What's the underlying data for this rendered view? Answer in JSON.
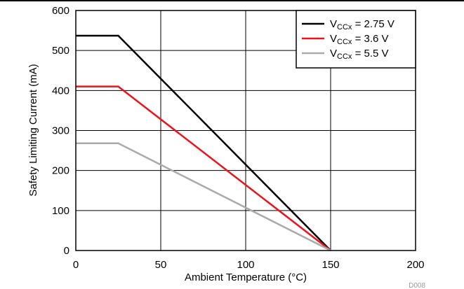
{
  "chart_data": {
    "type": "line",
    "xlabel": "Ambient Temperature (°C)",
    "ylabel": "Safety Limiting Current (mA)",
    "xlim": [
      0,
      200
    ],
    "ylim": [
      0,
      600
    ],
    "xticks": [
      0,
      50,
      100,
      150,
      200
    ],
    "yticks": [
      0,
      100,
      200,
      300,
      400,
      500,
      600
    ],
    "grid": true,
    "legend_position": "top-right",
    "series": [
      {
        "name_main": "V",
        "name_sub": "CCx",
        "name_rest": " = 2.75 V",
        "color": "#000000",
        "x": [
          0,
          25,
          150
        ],
        "y": [
          537,
          537,
          0
        ]
      },
      {
        "name_main": "V",
        "name_sub": "CCx",
        "name_rest": " = 3.6 V",
        "color": "#e8141e",
        "x": [
          0,
          25,
          150
        ],
        "y": [
          410,
          410,
          0
        ]
      },
      {
        "name_main": "V",
        "name_sub": "CCx",
        "name_rest": " = 5.5 V",
        "color": "#aaaaaa",
        "x": [
          0,
          25,
          150
        ],
        "y": [
          268,
          268,
          0
        ]
      }
    ]
  },
  "figure_id": "D008"
}
